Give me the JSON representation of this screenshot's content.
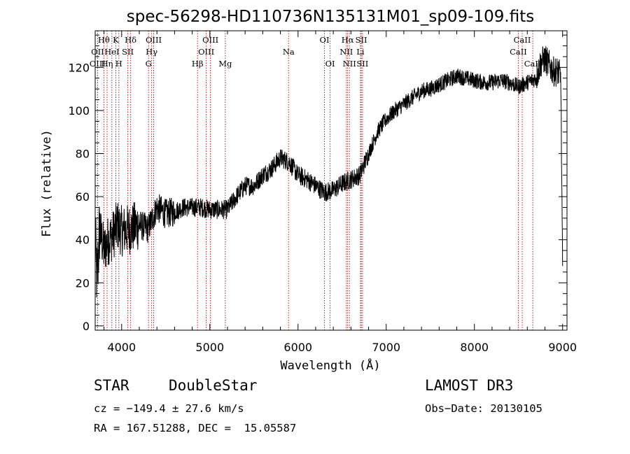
{
  "chart_data": {
    "type": "line",
    "title": "spec-56298-HD110736N135131M01_sp09-109.fits",
    "xlabel": "Wavelength (Å)",
    "ylabel": "Flux (relative)",
    "xlim": [
      3700,
      9050
    ],
    "ylim": [
      -2,
      137
    ],
    "xticks": [
      4000,
      5000,
      6000,
      7000,
      8000,
      9000
    ],
    "yticks": [
      0,
      20,
      40,
      60,
      80,
      100,
      120
    ],
    "xtick_labels": [
      "4000",
      "5000",
      "6000",
      "7000",
      "8000",
      "9000"
    ],
    "ytick_labels": [
      "0",
      "20",
      "40",
      "60",
      "80",
      "100",
      "120"
    ],
    "series": [
      {
        "name": "flux",
        "x": [
          3700,
          3720,
          3750,
          3800,
          3850,
          3900,
          3950,
          4000,
          4100,
          4200,
          4300,
          4400,
          4500,
          4600,
          4700,
          4800,
          4900,
          5000,
          5100,
          5200,
          5300,
          5400,
          5500,
          5600,
          5700,
          5800,
          5900,
          6000,
          6100,
          6200,
          6300,
          6400,
          6500,
          6600,
          6700,
          6800,
          6900,
          7000,
          7100,
          7200,
          7300,
          7400,
          7500,
          7600,
          7700,
          7800,
          7900,
          8000,
          8100,
          8200,
          8300,
          8400,
          8500,
          8600,
          8700,
          8750,
          8800,
          8850,
          8900,
          8950,
          8980,
          9000
        ],
        "y": [
          40,
          20,
          45,
          35,
          40,
          42,
          47,
          44,
          45,
          47,
          45,
          55,
          52,
          53,
          55,
          55,
          55,
          54,
          54,
          54,
          60,
          65,
          65,
          70,
          73,
          78,
          76,
          70,
          68,
          65,
          62,
          63,
          66,
          68,
          70,
          80,
          90,
          96,
          100,
          103,
          106,
          109,
          110,
          112,
          114,
          116,
          115,
          114,
          113,
          113,
          114,
          113,
          111,
          113,
          115,
          122,
          124,
          121,
          118,
          118,
          115,
          25
        ]
      }
    ],
    "spectral_lines": [
      {
        "label": "Hθ",
        "x": 3798,
        "row": 1
      },
      {
        "label": "K",
        "x": 3934,
        "row": 1
      },
      {
        "label": "Hδ",
        "x": 4102,
        "row": 1
      },
      {
        "label": "OIII",
        "x": 4363,
        "row": 1
      },
      {
        "label": "OIII",
        "x": 5007,
        "row": 1
      },
      {
        "label": "OI",
        "x": 6300,
        "row": 1
      },
      {
        "label": "Hα",
        "x": 6563,
        "row": 1
      },
      {
        "label": "SII",
        "x": 6717,
        "row": 1
      },
      {
        "label": "CaII",
        "x": 8542,
        "row": 1
      },
      {
        "label": "OII",
        "x": 3727,
        "row": 2
      },
      {
        "label": "HeI",
        "x": 3889,
        "row": 2
      },
      {
        "label": "SII",
        "x": 4070,
        "row": 2
      },
      {
        "label": "Hγ",
        "x": 4340,
        "row": 2
      },
      {
        "label": "OIII",
        "x": 4959,
        "row": 2
      },
      {
        "label": "Na",
        "x": 5893,
        "row": 2
      },
      {
        "label": "NII",
        "x": 6548,
        "row": 2
      },
      {
        "label": "Li",
        "x": 6708,
        "row": 2
      },
      {
        "label": "CaII",
        "x": 8498,
        "row": 2
      },
      {
        "label": "OIII",
        "x": 3727,
        "row": 3
      },
      {
        "label": "Hη",
        "x": 3835,
        "row": 3
      },
      {
        "label": "H",
        "x": 3968,
        "row": 3
      },
      {
        "label": "G",
        "x": 4305,
        "row": 3
      },
      {
        "label": "Hβ",
        "x": 4861,
        "row": 3
      },
      {
        "label": "Mg",
        "x": 5175,
        "row": 3
      },
      {
        "label": "OI",
        "x": 6364,
        "row": 3
      },
      {
        "label": "NII",
        "x": 6583,
        "row": 3
      },
      {
        "label": "SII",
        "x": 6731,
        "row": 3
      },
      {
        "label": "CaII",
        "x": 8662,
        "row": 3
      }
    ],
    "line_color": "#b22222",
    "spectrum_color": "#000000"
  },
  "info": {
    "object_type": "STAR",
    "subclass": "DoubleStar",
    "survey": "LAMOST DR3",
    "cz": "cz = −149.4 ± 27.6 km/s",
    "obs_date": "Obs−Date: 20130105",
    "coords": "RA = 167.51288, DEC =  15.05587"
  }
}
